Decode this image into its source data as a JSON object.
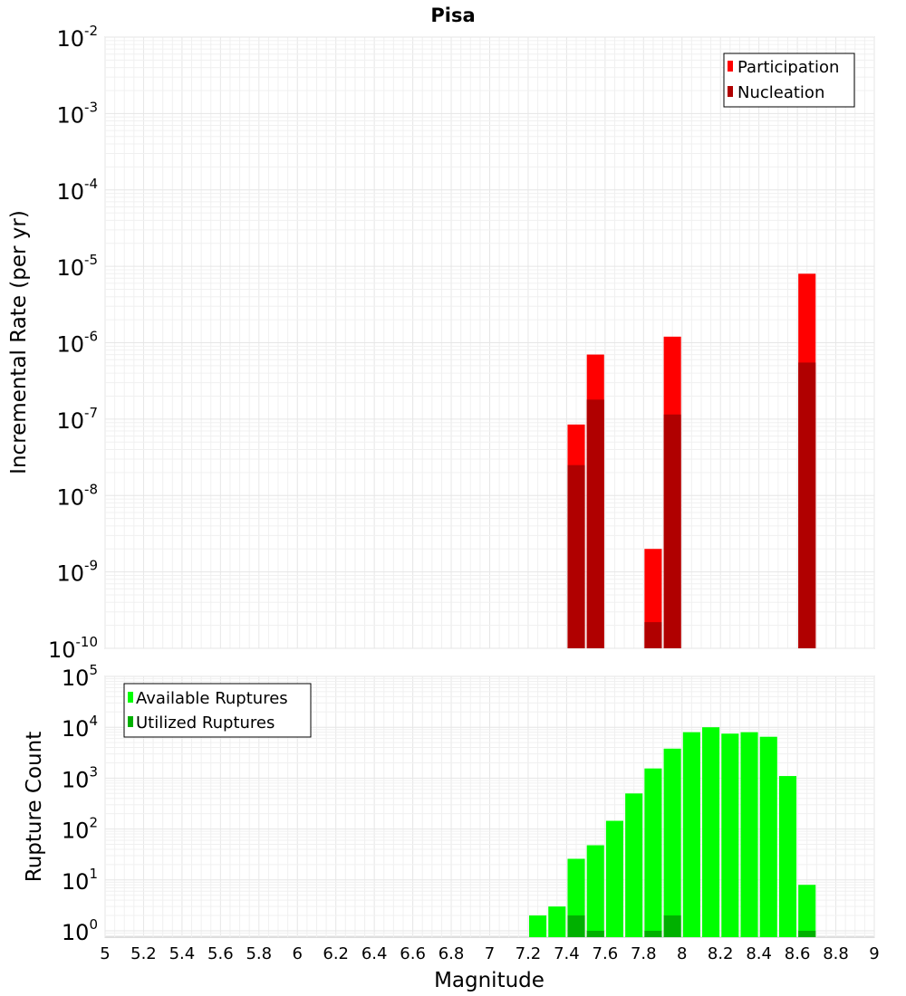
{
  "chart_data": [
    {
      "type": "bar",
      "title": "Pisa",
      "xlabel": "",
      "ylabel": "Incremental Rate (per yr)",
      "yscale": "log",
      "xlim": [
        5,
        9
      ],
      "ylim": [
        1e-10,
        0.01
      ],
      "ytick_exponents": [
        -10,
        -9,
        -8,
        -7,
        -6,
        -5,
        -4,
        -3,
        -2
      ],
      "grid": true,
      "legend_position": "top-right",
      "series": [
        {
          "name": "Participation",
          "color": "#ff0000",
          "x": [
            7.45,
            7.55,
            7.85,
            7.95,
            8.65
          ],
          "values": [
            8.5e-08,
            7e-07,
            2e-09,
            1.2e-06,
            8e-06
          ]
        },
        {
          "name": "Nucleation",
          "color": "#b00000",
          "x": [
            7.45,
            7.55,
            7.85,
            7.95,
            8.65
          ],
          "values": [
            2.5e-08,
            1.8e-07,
            2.2e-10,
            1.15e-07,
            5.5e-07
          ]
        }
      ]
    },
    {
      "type": "bar",
      "title": "",
      "xlabel": "Magnitude",
      "ylabel": "Rupture Count",
      "yscale": "log",
      "xlim": [
        5,
        9
      ],
      "ylim": [
        0.75,
        100000
      ],
      "ytick_exponents": [
        0,
        1,
        2,
        3,
        4,
        5
      ],
      "xticks": [
        "5",
        "5.2",
        "5.4",
        "5.6",
        "5.8",
        "6",
        "6.2",
        "6.4",
        "6.6",
        "6.8",
        "7",
        "7.2",
        "7.4",
        "7.6",
        "7.8",
        "8",
        "8.2",
        "8.4",
        "8.6",
        "8.8",
        "9"
      ],
      "grid": true,
      "legend_position": "top-left",
      "series": [
        {
          "name": "Available Ruptures",
          "color": "#00ff00",
          "x": [
            7.25,
            7.35,
            7.45,
            7.55,
            7.65,
            7.75,
            7.85,
            7.95,
            8.05,
            8.15,
            8.25,
            8.35,
            8.45,
            8.55,
            8.65
          ],
          "values": [
            2,
            3,
            26,
            48,
            145,
            500,
            1550,
            3800,
            8000,
            10000,
            7500,
            8000,
            6500,
            1100,
            8
          ]
        },
        {
          "name": "Utilized Ruptures",
          "color": "#00b000",
          "x": [
            7.45,
            7.55,
            7.85,
            7.95,
            8.65
          ],
          "values": [
            2,
            1,
            1,
            2,
            1
          ]
        }
      ]
    }
  ]
}
